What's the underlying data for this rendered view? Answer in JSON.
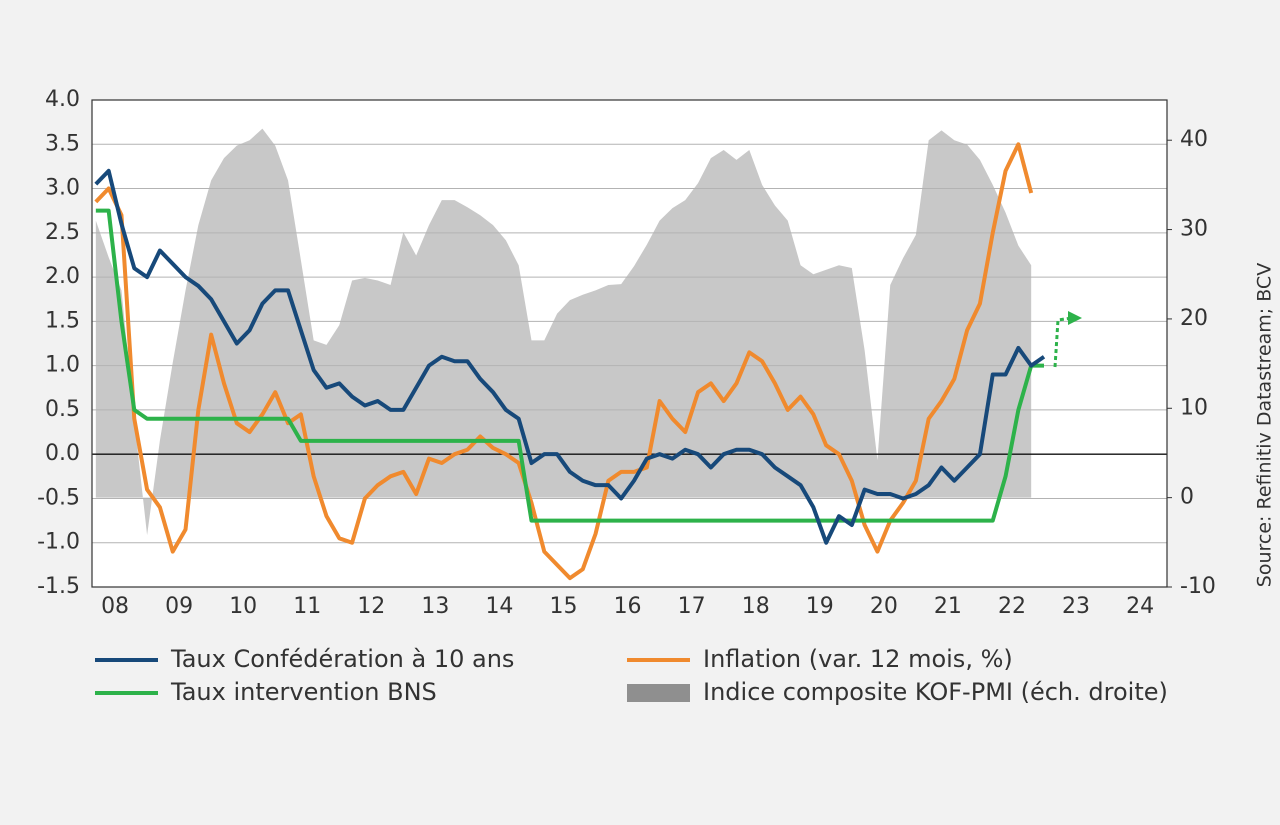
{
  "chart_data": {
    "type": "line",
    "source": "Source: Refinitiv Datastream; BCV",
    "x": [
      2008.2,
      2008.4,
      2008.6,
      2008.8,
      2009.0,
      2009.2,
      2009.4,
      2009.6,
      2009.8,
      2010.0,
      2010.2,
      2010.4,
      2010.6,
      2010.8,
      2011.0,
      2011.2,
      2011.4,
      2011.6,
      2011.8,
      2012.0,
      2012.2,
      2012.4,
      2012.6,
      2012.8,
      2013.0,
      2013.2,
      2013.4,
      2013.6,
      2013.8,
      2014.0,
      2014.2,
      2014.4,
      2014.6,
      2014.8,
      2015.0,
      2015.2,
      2015.4,
      2015.6,
      2015.8,
      2016.0,
      2016.2,
      2016.4,
      2016.6,
      2016.8,
      2017.0,
      2017.2,
      2017.4,
      2017.6,
      2017.8,
      2018.0,
      2018.2,
      2018.4,
      2018.6,
      2018.8,
      2019.0,
      2019.2,
      2019.4,
      2019.6,
      2019.8,
      2020.0,
      2020.2,
      2020.4,
      2020.6,
      2020.8,
      2021.0,
      2021.2,
      2021.4,
      2021.6,
      2021.8,
      2022.0,
      2022.2,
      2022.4,
      2022.6,
      2022.8,
      2023.0
    ],
    "xlim": [
      2008.14,
      2024.92
    ],
    "xticks": [
      {
        "value": 2008.5,
        "label": "08"
      },
      {
        "value": 2009.5,
        "label": "09"
      },
      {
        "value": 2010.5,
        "label": "10"
      },
      {
        "value": 2011.5,
        "label": "11"
      },
      {
        "value": 2012.5,
        "label": "12"
      },
      {
        "value": 2013.5,
        "label": "13"
      },
      {
        "value": 2014.5,
        "label": "14"
      },
      {
        "value": 2015.5,
        "label": "15"
      },
      {
        "value": 2016.5,
        "label": "16"
      },
      {
        "value": 2017.5,
        "label": "17"
      },
      {
        "value": 2018.5,
        "label": "18"
      },
      {
        "value": 2019.5,
        "label": "19"
      },
      {
        "value": 2020.5,
        "label": "20"
      },
      {
        "value": 2021.5,
        "label": "21"
      },
      {
        "value": 2022.5,
        "label": "22"
      },
      {
        "value": 2023.5,
        "label": "23"
      },
      {
        "value": 2024.5,
        "label": "24"
      }
    ],
    "ylim": [
      -1.5,
      4.0
    ],
    "yticks": [
      -1.5,
      {
        "value": -1,
        "label": "-1.0"
      },
      -0.5,
      {
        "value": 0,
        "label": "0.0"
      },
      0.5,
      {
        "value": 1,
        "label": "1.0"
      },
      1.5,
      {
        "value": 2,
        "label": "2.0"
      },
      2.5,
      {
        "value": 3,
        "label": "3.0"
      },
      3.5,
      {
        "value": 4,
        "label": "4.0"
      }
    ],
    "y2lim": [
      -10,
      44.5
    ],
    "y2ticks": [
      -10,
      0,
      10,
      20,
      30,
      40
    ],
    "grid": true,
    "series": [
      {
        "name": "Taux Confédération à 10 ans",
        "color": "#17497a",
        "values": [
          3.05,
          3.2,
          2.6,
          2.1,
          2.0,
          2.3,
          2.15,
          2.0,
          1.9,
          1.75,
          1.5,
          1.25,
          1.4,
          1.7,
          1.85,
          1.85,
          1.4,
          0.95,
          0.75,
          0.8,
          0.65,
          0.55,
          0.6,
          0.5,
          0.5,
          0.75,
          1.0,
          1.1,
          1.05,
          1.05,
          0.85,
          0.7,
          0.5,
          0.4,
          -0.1,
          0.0,
          0.0,
          -0.2,
          -0.3,
          -0.35,
          -0.35,
          -0.5,
          -0.3,
          -0.05,
          0.0,
          -0.05,
          0.05,
          0.0,
          -0.15,
          0.0,
          0.05,
          0.05,
          0.0,
          -0.15,
          -0.25,
          -0.35,
          -0.6,
          -1.0,
          -0.7,
          -0.8,
          -0.4,
          -0.45,
          -0.45,
          -0.5,
          -0.45,
          -0.35,
          -0.15,
          -0.3,
          -0.15,
          0.0,
          0.9,
          0.9,
          1.2,
          1.0,
          1.1
        ]
      },
      {
        "name": "Inflation (var. 12 mois, %)",
        "color": "#f08a2e",
        "values": [
          2.85,
          3.0,
          2.7,
          0.4,
          -0.4,
          -0.6,
          -1.1,
          -0.85,
          0.5,
          1.35,
          0.8,
          0.35,
          0.25,
          0.45,
          0.7,
          0.35,
          0.45,
          -0.25,
          -0.7,
          -0.95,
          -1.0,
          -0.5,
          -0.35,
          -0.25,
          -0.2,
          -0.45,
          -0.05,
          -0.1,
          0.0,
          0.05,
          0.2,
          0.07,
          0.0,
          -0.1,
          -0.55,
          -1.1,
          -1.25,
          -1.4,
          -1.3,
          -0.9,
          -0.3,
          -0.2,
          -0.2,
          -0.15,
          0.6,
          0.4,
          0.25,
          0.7,
          0.8,
          0.6,
          0.8,
          1.15,
          1.05,
          0.8,
          0.5,
          0.65,
          0.45,
          0.1,
          0.0,
          -0.3,
          -0.8,
          -1.1,
          -0.75,
          -0.55,
          -0.3,
          0.4,
          0.6,
          0.85,
          1.4,
          1.7,
          2.5,
          3.2,
          3.5,
          2.95,
          null
        ]
      },
      {
        "name": "Taux intervention BNS",
        "color": "#2db24a",
        "values": [
          2.75,
          2.75,
          1.5,
          0.5,
          0.4,
          0.4,
          0.4,
          0.4,
          0.4,
          0.4,
          0.4,
          0.4,
          0.4,
          0.4,
          0.4,
          0.4,
          0.15,
          0.15,
          0.15,
          0.15,
          0.15,
          0.15,
          0.15,
          0.15,
          0.15,
          0.15,
          0.15,
          0.15,
          0.15,
          0.15,
          0.15,
          0.15,
          0.15,
          0.15,
          -0.75,
          -0.75,
          -0.75,
          -0.75,
          -0.75,
          -0.75,
          -0.75,
          -0.75,
          -0.75,
          -0.75,
          -0.75,
          -0.75,
          -0.75,
          -0.75,
          -0.75,
          -0.75,
          -0.75,
          -0.75,
          -0.75,
          -0.75,
          -0.75,
          -0.75,
          -0.75,
          -0.75,
          -0.75,
          -0.75,
          -0.75,
          -0.75,
          -0.75,
          -0.75,
          -0.75,
          -0.75,
          -0.75,
          -0.75,
          -0.75,
          -0.75,
          -0.75,
          -0.25,
          0.5,
          1.0,
          1.0
        ]
      },
      {
        "name": "Indice composite KOF-PMI (éch. droite)",
        "color": "#c8c8c8",
        "axis": "y2",
        "type": "area",
        "values": [
          31.0,
          26.9,
          23.2,
          8.7,
          -4.2,
          6.4,
          15.1,
          23.2,
          30.5,
          35.5,
          38.0,
          39.4,
          40.0,
          41.3,
          39.4,
          35.5,
          26.6,
          17.6,
          17.1,
          19.3,
          24.3,
          24.6,
          24.3,
          23.8,
          29.7,
          27.1,
          30.5,
          33.3,
          33.3,
          32.5,
          31.6,
          30.5,
          28.8,
          26.0,
          17.6,
          17.6,
          20.6,
          22.1,
          22.7,
          23.2,
          23.8,
          23.9,
          25.9,
          28.3,
          31.0,
          32.4,
          33.3,
          35.2,
          38.0,
          38.9,
          37.8,
          38.9,
          35.0,
          32.7,
          31.0,
          26.0,
          25.0,
          25.5,
          26.0,
          25.7,
          16.5,
          4.2,
          23.8,
          26.8,
          29.4,
          40.0,
          41.1,
          40.0,
          39.5,
          37.8,
          35.0,
          31.9,
          28.2,
          26.0,
          null
        ]
      }
    ]
  }
}
